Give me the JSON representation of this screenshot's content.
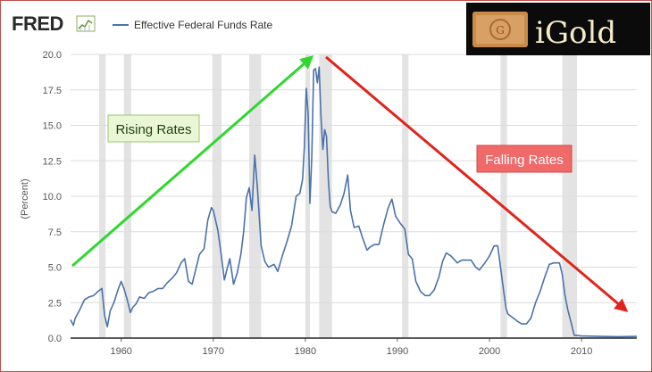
{
  "header": {
    "logo_text": "FRED",
    "legend_label": "Effective Federal Funds Rate"
  },
  "brand": {
    "name": "iGold"
  },
  "annotations": {
    "rising": "Rising Rates",
    "falling": "Falling Rates"
  },
  "colors": {
    "series": "#4a72a8",
    "recession": "#e3e3e3",
    "rising_arrow": "#2ed82e",
    "falling_arrow": "#e0241b",
    "rising_box_fill": "#eaf7d6",
    "falling_box_fill": "#f06a6a",
    "frame": "#c0504d",
    "brand_bg": "#0b0b0b",
    "brand_text": "#f4e9c9"
  },
  "chart_data": {
    "type": "line",
    "title": "",
    "xlabel": "",
    "ylabel": "(Percent)",
    "xlim": [
      1954.5,
      2016.0
    ],
    "ylim": [
      0,
      20
    ],
    "x_ticks": [
      1960,
      1970,
      1980,
      1990,
      2000,
      2010
    ],
    "y_ticks": [
      0.0,
      2.5,
      5.0,
      7.5,
      10.0,
      12.5,
      15.0,
      17.5,
      20.0
    ],
    "y_tick_labels": [
      "0.0",
      "2.5",
      "5.0",
      "7.5",
      "10.0",
      "12.5",
      "15.0",
      "17.5",
      "20.0"
    ],
    "grid": "horizontal",
    "recessions": [
      [
        1957.6,
        1958.3
      ],
      [
        1960.3,
        1961.1
      ],
      [
        1969.9,
        1970.9
      ],
      [
        1973.9,
        1975.2
      ],
      [
        1980.0,
        1980.5
      ],
      [
        1981.5,
        1982.9
      ],
      [
        1990.5,
        1991.2
      ],
      [
        2001.2,
        2001.9
      ],
      [
        2007.9,
        2009.5
      ]
    ],
    "series": [
      {
        "x": [
          1954.5,
          1954.8,
          1955.0,
          1955.5,
          1956.0,
          1956.5,
          1957.0,
          1957.5,
          1957.9,
          1958.2,
          1958.5,
          1958.8,
          1959.2,
          1959.7,
          1960.0,
          1960.3,
          1960.7,
          1961.0,
          1961.3,
          1961.6,
          1962.0,
          1962.5,
          1963.0,
          1963.5,
          1964.0,
          1964.5,
          1965.0,
          1965.5,
          1966.0,
          1966.5,
          1966.9,
          1967.3,
          1967.7,
          1968.0,
          1968.5,
          1969.0,
          1969.4,
          1969.8,
          1970.0,
          1970.5,
          1970.8,
          1971.2,
          1971.5,
          1971.8,
          1972.2,
          1972.6,
          1973.0,
          1973.3,
          1973.6,
          1973.9,
          1974.2,
          1974.5,
          1974.8,
          1975.2,
          1975.6,
          1976.0,
          1976.6,
          1977.0,
          1977.5,
          1978.0,
          1978.5,
          1979.0,
          1979.4,
          1979.7,
          1979.9,
          1980.1,
          1980.3,
          1980.5,
          1980.7,
          1980.9,
          1981.1,
          1981.3,
          1981.5,
          1981.7,
          1981.9,
          1982.1,
          1982.3,
          1982.5,
          1982.7,
          1982.9,
          1983.3,
          1983.8,
          1984.2,
          1984.6,
          1984.9,
          1985.3,
          1985.8,
          1986.2,
          1986.7,
          1987.0,
          1987.5,
          1988.0,
          1988.5,
          1989.0,
          1989.4,
          1989.8,
          1990.3,
          1990.8,
          1991.2,
          1991.6,
          1992.0,
          1992.5,
          1993.0,
          1993.5,
          1994.0,
          1994.5,
          1994.9,
          1995.3,
          1995.8,
          1996.5,
          1997.0,
          1998.0,
          1998.5,
          1998.9,
          1999.5,
          2000.0,
          2000.5,
          2000.9,
          2001.2,
          2001.5,
          2001.8,
          2002.0,
          2003.0,
          2003.5,
          2004.0,
          2004.5,
          2005.0,
          2005.5,
          2006.0,
          2006.5,
          2007.0,
          2007.6,
          2007.9,
          2008.2,
          2008.5,
          2008.9,
          2009.2,
          2010.0,
          2012.0,
          2014.0,
          2016.0
        ],
        "values": [
          1.3,
          0.9,
          1.4,
          2.0,
          2.7,
          2.9,
          3.0,
          3.3,
          3.5,
          1.6,
          0.8,
          1.9,
          2.5,
          3.5,
          4.0,
          3.5,
          2.6,
          1.8,
          2.2,
          2.4,
          2.9,
          2.8,
          3.2,
          3.3,
          3.5,
          3.5,
          3.9,
          4.2,
          4.6,
          5.3,
          5.6,
          4.0,
          3.8,
          4.6,
          5.9,
          6.3,
          8.3,
          9.2,
          9.0,
          7.6,
          6.2,
          4.1,
          4.9,
          5.6,
          3.8,
          4.6,
          5.9,
          7.5,
          9.9,
          10.6,
          9.0,
          12.9,
          10.5,
          6.5,
          5.4,
          5.0,
          5.2,
          4.7,
          5.8,
          6.8,
          7.9,
          10.0,
          10.2,
          11.2,
          13.5,
          17.6,
          15.8,
          9.5,
          12.8,
          18.9,
          19.0,
          18.0,
          19.1,
          15.6,
          13.3,
          14.7,
          14.2,
          11.1,
          9.3,
          8.9,
          8.8,
          9.4,
          10.2,
          11.5,
          9.0,
          7.8,
          7.9,
          7.1,
          6.2,
          6.4,
          6.6,
          6.6,
          8.0,
          9.2,
          9.8,
          8.6,
          8.1,
          7.7,
          5.9,
          5.6,
          4.0,
          3.3,
          3.0,
          3.0,
          3.4,
          4.3,
          5.4,
          6.0,
          5.8,
          5.3,
          5.5,
          5.5,
          5.0,
          4.8,
          5.3,
          5.8,
          6.5,
          6.5,
          5.0,
          3.5,
          2.1,
          1.7,
          1.2,
          1.0,
          1.0,
          1.4,
          2.5,
          3.3,
          4.3,
          5.2,
          5.3,
          5.3,
          4.5,
          3.0,
          2.0,
          1.0,
          0.2,
          0.15,
          0.12,
          0.1,
          0.12
        ]
      }
    ]
  }
}
